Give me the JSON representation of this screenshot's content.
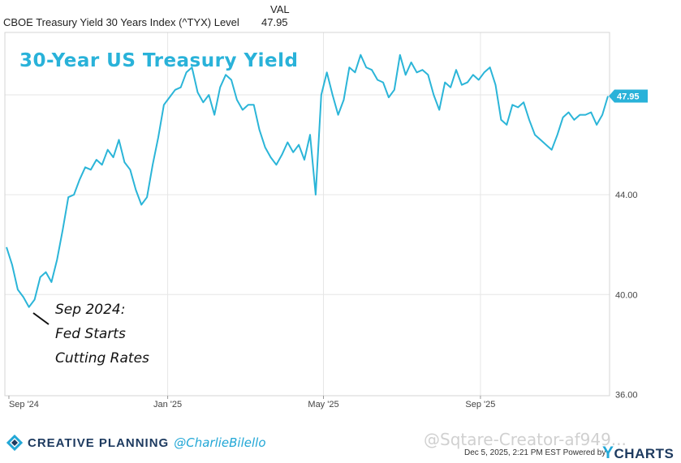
{
  "header": {
    "series_label": "CBOE Treasury Yield 30 Years Index (^TYX) Level",
    "val_heading": "VAL",
    "val_value": "47.95"
  },
  "chart_data": {
    "type": "line",
    "title": "30-Year US Treasury Yield",
    "xlabel": "",
    "ylabel": "",
    "x_ticks": [
      "Sep '24",
      "Jan '25",
      "May '25",
      "Sep '25"
    ],
    "y_ticks": [
      "36.00",
      "40.00",
      "44.00"
    ],
    "ylim": [
      35.95,
      50.5
    ],
    "last_value_label": "47.95",
    "grid": true,
    "line_color": "#2bb5d8",
    "annotation": {
      "lines": [
        "Sep 2024:",
        "Fed Starts",
        "Cutting Rates"
      ]
    },
    "series": [
      {
        "values": [
          41.9,
          41.2,
          40.2,
          39.9,
          39.5,
          39.8,
          40.7,
          40.9,
          40.5,
          41.4,
          42.6,
          43.9,
          44.0,
          44.6,
          45.1,
          45.0,
          45.4,
          45.2,
          45.8,
          45.5,
          46.2,
          45.3,
          45.0,
          44.2,
          43.6,
          43.9,
          45.2,
          46.3,
          47.6,
          47.9,
          48.2,
          48.3,
          48.9,
          49.1,
          48.1,
          47.7,
          48.0,
          47.2,
          48.3,
          48.8,
          48.6,
          47.8,
          47.4,
          47.6,
          47.6,
          46.6,
          45.9,
          45.5,
          45.2,
          45.6,
          46.1,
          45.7,
          46.0,
          45.4,
          46.4,
          44.0,
          48.0,
          48.9,
          48.0,
          47.2,
          47.8,
          49.1,
          48.9,
          49.6,
          49.1,
          49.0,
          48.6,
          48.5,
          47.9,
          48.2,
          49.6,
          48.8,
          49.3,
          48.9,
          49.0,
          48.8,
          48.0,
          47.4,
          48.5,
          48.3,
          49.0,
          48.4,
          48.5,
          48.8,
          48.6,
          48.9,
          49.1,
          48.4,
          47.0,
          46.8,
          47.6,
          47.5,
          47.7,
          47.0,
          46.4,
          46.2,
          46.0,
          45.8,
          46.4,
          47.1,
          47.3,
          47.0,
          47.2,
          47.2,
          47.3,
          46.8,
          47.2,
          47.95
        ]
      }
    ]
  },
  "footer": {
    "brand": "CREATIVE PLANNING",
    "handle": "@CharlieBilello",
    "watermark": "@Sqtare-Creator-af949...",
    "timestamp": "Dec 5, 2025, 2:21 PM EST",
    "powered_by": "Powered by",
    "ycharts_y": "Y",
    "ycharts_rest": "CHARTS",
    "brand_color": "#1d3a5f",
    "accent_color": "#22a7d6"
  }
}
